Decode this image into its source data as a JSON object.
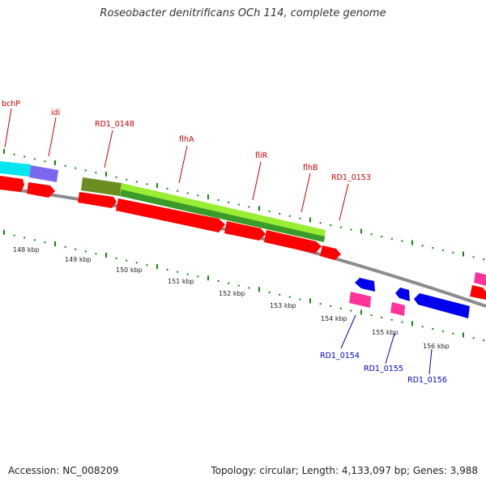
{
  "title": "Roseobacter denitrificans OCh 114, complete genome",
  "footer": {
    "accession": "Accession: NC_008209",
    "stats": "Topology: circular; Length: 4,133,097 bp; Genes: 3,988"
  },
  "colors": {
    "backbone": "#8c8c8c",
    "cds_forward": "#ff0000",
    "cds_reverse": "#ff3399",
    "blue_feature": "#0000ff",
    "label_forward": "#cc0000",
    "label_reverse": "#0000cc",
    "tick": "#118811",
    "gene_cyan": "#00e5ee",
    "gene_purple": "#7b68ee",
    "gene_lime": "#99ee33",
    "gene_olive": "#6b8e23"
  },
  "scale": {
    "labels": [
      "148 kbp",
      "149 kbp",
      "150 kbp",
      "151 kbp",
      "152 kbp",
      "153 kbp",
      "154 kbp",
      "155 kbp",
      "156 kbp"
    ]
  },
  "genes_forward": [
    "bchP",
    "idi",
    "RD1_0148",
    "flhA",
    "fliR",
    "flhB",
    "RD1_0153"
  ],
  "genes_reverse": [
    "RD1_0154",
    "RD1_0155",
    "RD1_0156"
  ]
}
